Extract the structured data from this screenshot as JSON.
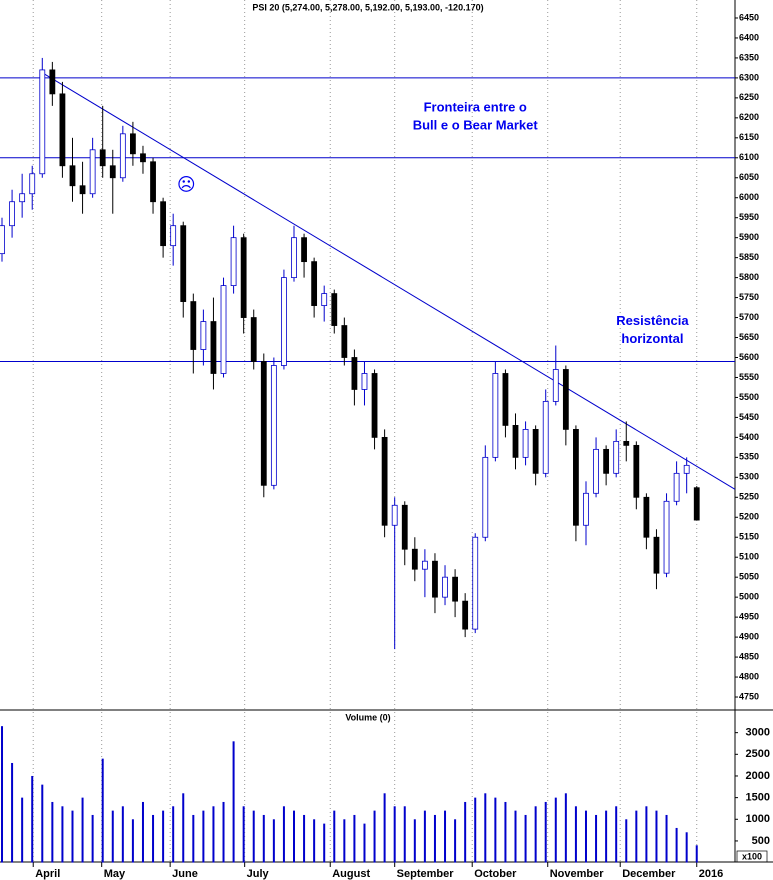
{
  "chart_data": {
    "type": "candlestick",
    "title": "PSI 20 (5,274.00, 5,278.00, 5,192.00, 5,193.00, -120.170)",
    "up_color": "#0000cc",
    "down_color": "#000000",
    "open": [
      5860,
      5930,
      5990,
      6010,
      6060,
      6320,
      6260,
      6080,
      6030,
      6010,
      6120,
      6080,
      6050,
      6160,
      6110,
      6090,
      5990,
      5880,
      5930,
      5740,
      5620,
      5690,
      5560,
      5780,
      5900,
      5700,
      5590,
      5280,
      5580,
      5800,
      5900,
      5840,
      5730,
      5760,
      5680,
      5600,
      5520,
      5560,
      5400,
      5180,
      5230,
      5120,
      5070,
      5090,
      5000,
      5050,
      4990,
      4920,
      5150,
      5350,
      5560,
      5430,
      5350,
      5420,
      5310,
      5490,
      5570,
      5420,
      5180,
      5260,
      5370,
      5310,
      5390,
      5380,
      5250,
      5150,
      5060,
      5240,
      5310,
      5274
    ],
    "high": [
      5950,
      6020,
      6060,
      6080,
      6350,
      6340,
      6290,
      6150,
      6090,
      6150,
      6230,
      6120,
      6180,
      6190,
      6130,
      6100,
      6000,
      5960,
      5940,
      5760,
      5720,
      5750,
      5800,
      5930,
      5910,
      5720,
      5610,
      5600,
      5820,
      5930,
      5910,
      5850,
      5780,
      5770,
      5700,
      5620,
      5590,
      5570,
      5420,
      5250,
      5240,
      5150,
      5120,
      5110,
      5080,
      5070,
      5010,
      5160,
      5380,
      5590,
      5570,
      5460,
      5440,
      5430,
      5520,
      5630,
      5580,
      5430,
      5290,
      5400,
      5380,
      5420,
      5440,
      5390,
      5260,
      5170,
      5260,
      5340,
      5350,
      5278
    ],
    "low": [
      5840,
      5900,
      5950,
      5970,
      6050,
      6230,
      6050,
      5990,
      5960,
      6000,
      6050,
      5960,
      6040,
      6080,
      6060,
      5960,
      5850,
      5830,
      5700,
      5560,
      5580,
      5520,
      5550,
      5760,
      5660,
      5570,
      5250,
      5270,
      5570,
      5790,
      5800,
      5700,
      5690,
      5660,
      5580,
      5480,
      5480,
      5370,
      5150,
      4870,
      5080,
      5040,
      5000,
      4960,
      4980,
      4950,
      4900,
      4910,
      5140,
      5340,
      5400,
      5320,
      5330,
      5280,
      5300,
      5480,
      5380,
      5140,
      5130,
      5250,
      5280,
      5300,
      5340,
      5220,
      5120,
      5020,
      5050,
      5230,
      5260,
      5192
    ],
    "close": [
      5930,
      5990,
      6010,
      6060,
      6320,
      6260,
      6080,
      6030,
      6010,
      6120,
      6080,
      6050,
      6160,
      6110,
      6090,
      5990,
      5880,
      5930,
      5740,
      5620,
      5690,
      5560,
      5780,
      5900,
      5700,
      5590,
      5280,
      5580,
      5800,
      5900,
      5840,
      5730,
      5760,
      5680,
      5600,
      5520,
      5560,
      5400,
      5180,
      5230,
      5120,
      5070,
      5090,
      5000,
      5050,
      4990,
      4920,
      5150,
      5350,
      5560,
      5430,
      5350,
      5420,
      5310,
      5490,
      5570,
      5420,
      5180,
      5260,
      5370,
      5310,
      5390,
      5380,
      5250,
      5150,
      5060,
      5240,
      5310,
      5330,
      5193
    ],
    "xlim": [
      -0.2,
      72.8
    ],
    "xticks": [
      {
        "value": 3.1,
        "label": "April"
      },
      {
        "value": 9.9,
        "label": "May"
      },
      {
        "value": 16.7,
        "label": "June"
      },
      {
        "value": 24.1,
        "label": "July"
      },
      {
        "value": 32.6,
        "label": "August"
      },
      {
        "value": 39.0,
        "label": "September"
      },
      {
        "value": 46.7,
        "label": "October"
      },
      {
        "value": 54.2,
        "label": "November"
      },
      {
        "value": 61.4,
        "label": "December"
      },
      {
        "value": 69.0,
        "label": "2016"
      }
    ],
    "ylim": [
      4720,
      6480
    ],
    "yticks": [
      4750,
      4800,
      4850,
      4900,
      4950,
      5000,
      5050,
      5100,
      5150,
      5200,
      5250,
      5300,
      5350,
      5400,
      5450,
      5500,
      5550,
      5600,
      5650,
      5700,
      5750,
      5800,
      5850,
      5900,
      5950,
      6000,
      6050,
      6100,
      6150,
      6200,
      6250,
      6300,
      6350,
      6400,
      6450
    ],
    "line_color": "#0000cc",
    "horizontal_lines": [
      6300,
      6100,
      5590
    ],
    "trend_line": {
      "x": [
        4.2,
        72.8
      ],
      "y": [
        6310,
        5270
      ]
    },
    "annotations": [
      {
        "text": [
          "Fronteira entre o",
          "Bull e o Bear Market"
        ],
        "x": 47,
        "y": 6225
      },
      {
        "text": [
          "Resistência",
          "horizontal"
        ],
        "x": 64.6,
        "y": 5690
      },
      {
        "text": [
          "☹"
        ],
        "x": 18.3,
        "y": 6030
      }
    ],
    "volume": {
      "title": "Volume (0)",
      "unit": "x100",
      "color": "#0000cc",
      "values": [
        3150,
        2300,
        1500,
        2000,
        1800,
        1400,
        1300,
        1200,
        1500,
        1100,
        2400,
        1200,
        1300,
        1000,
        1400,
        1100,
        1200,
        1300,
        1600,
        1100,
        1200,
        1300,
        1400,
        2800,
        1300,
        1200,
        1100,
        1000,
        1300,
        1200,
        1100,
        1000,
        900,
        1200,
        1000,
        1100,
        900,
        1200,
        1600,
        1300,
        1300,
        1000,
        1200,
        1100,
        1200,
        1000,
        1400,
        1500,
        1600,
        1500,
        1400,
        1200,
        1100,
        1300,
        1400,
        1500,
        1600,
        1300,
        1200,
        1100,
        1200,
        1300,
        1000,
        1200,
        1300,
        1200,
        1100,
        800,
        700,
        400
      ],
      "ylim": [
        0,
        3500
      ],
      "yticks": [
        500,
        1000,
        1500,
        2000,
        2500,
        3000
      ]
    }
  }
}
